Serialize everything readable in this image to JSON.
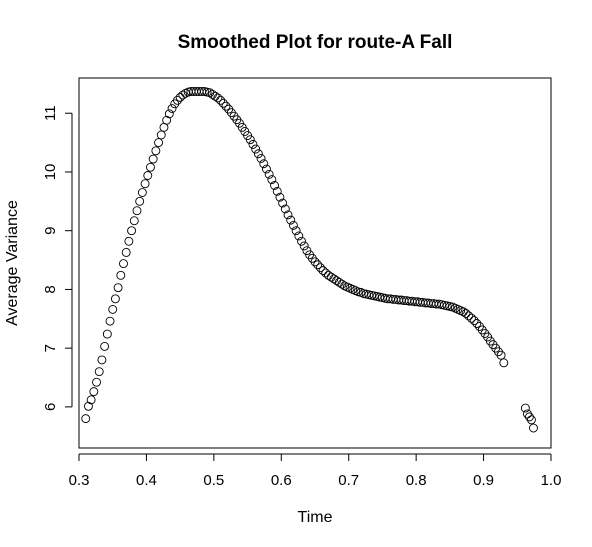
{
  "chart_data": {
    "type": "scatter",
    "title": "Smoothed Plot for route-A Fall",
    "xlabel": "Time",
    "ylabel": "Average Variance",
    "xlim": [
      0.3,
      1.0
    ],
    "ylim": [
      5.3,
      11.6
    ],
    "x_ticks": [
      "0.3",
      "0.4",
      "0.5",
      "0.6",
      "0.7",
      "0.8",
      "0.9",
      "1.0"
    ],
    "y_ticks": [
      "6",
      "7",
      "8",
      "9",
      "10",
      "11"
    ],
    "marker": "open-circle",
    "marker_color": "#000000",
    "grid": false,
    "legend": "none",
    "series": [
      {
        "x": [
          0.31,
          0.314,
          0.318,
          0.322,
          0.326,
          0.33,
          0.334,
          0.338,
          0.342,
          0.346,
          0.35,
          0.354,
          0.358,
          0.362,
          0.366,
          0.37,
          0.374,
          0.378,
          0.382,
          0.386,
          0.39,
          0.394,
          0.398,
          0.402,
          0.406,
          0.41,
          0.414,
          0.418,
          0.422,
          0.426,
          0.43,
          0.434,
          0.438,
          0.442,
          0.446,
          0.45,
          0.454,
          0.458,
          0.462,
          0.466,
          0.47,
          0.474,
          0.478,
          0.482,
          0.486,
          0.49,
          0.494,
          0.498,
          0.502,
          0.506,
          0.51,
          0.514,
          0.518,
          0.522,
          0.526,
          0.53,
          0.534,
          0.538,
          0.542,
          0.546,
          0.55,
          0.554,
          0.558,
          0.562,
          0.566,
          0.57,
          0.574,
          0.578,
          0.582,
          0.586,
          0.59,
          0.594,
          0.598,
          0.602,
          0.606,
          0.61,
          0.614,
          0.618,
          0.622,
          0.626,
          0.63,
          0.634,
          0.638,
          0.642,
          0.646,
          0.65,
          0.654,
          0.658,
          0.662,
          0.666,
          0.67,
          0.674,
          0.678,
          0.682,
          0.686,
          0.69,
          0.694,
          0.698,
          0.702,
          0.706,
          0.71,
          0.714,
          0.718,
          0.722,
          0.726,
          0.73,
          0.734,
          0.738,
          0.742,
          0.746,
          0.75,
          0.754,
          0.758,
          0.762,
          0.766,
          0.77,
          0.774,
          0.778,
          0.782,
          0.786,
          0.79,
          0.794,
          0.798,
          0.802,
          0.806,
          0.81,
          0.814,
          0.818,
          0.822,
          0.826,
          0.83,
          0.834,
          0.838,
          0.842,
          0.846,
          0.85,
          0.854,
          0.858,
          0.862,
          0.866,
          0.87,
          0.874,
          0.878,
          0.882,
          0.886,
          0.89,
          0.894,
          0.898,
          0.902,
          0.906,
          0.91,
          0.914,
          0.918,
          0.922,
          0.926,
          0.93,
          0.962,
          0.965,
          0.968,
          0.971,
          0.974
        ],
        "y": [
          5.8,
          6.01,
          6.12,
          6.26,
          6.42,
          6.6,
          6.8,
          7.03,
          7.24,
          7.46,
          7.66,
          7.84,
          8.03,
          8.24,
          8.44,
          8.63,
          8.82,
          9.0,
          9.17,
          9.34,
          9.5,
          9.65,
          9.8,
          9.94,
          10.08,
          10.22,
          10.36,
          10.5,
          10.63,
          10.76,
          10.88,
          10.99,
          11.08,
          11.16,
          11.22,
          11.27,
          11.31,
          11.34,
          11.36,
          11.37,
          11.37,
          11.37,
          11.37,
          11.37,
          11.37,
          11.36,
          11.35,
          11.32,
          11.29,
          11.26,
          11.22,
          11.17,
          11.12,
          11.07,
          11.01,
          10.95,
          10.89,
          10.83,
          10.76,
          10.69,
          10.62,
          10.55,
          10.47,
          10.39,
          10.31,
          10.23,
          10.14,
          10.05,
          9.96,
          9.87,
          9.77,
          9.67,
          9.57,
          9.47,
          9.37,
          9.27,
          9.18,
          9.09,
          9.0,
          8.91,
          8.82,
          8.74,
          8.66,
          8.59,
          8.53,
          8.47,
          8.42,
          8.37,
          8.32,
          8.28,
          8.24,
          8.21,
          8.18,
          8.15,
          8.12,
          8.09,
          8.06,
          8.04,
          8.02,
          8.0,
          7.98,
          7.96,
          7.95,
          7.93,
          7.92,
          7.91,
          7.9,
          7.89,
          7.88,
          7.87,
          7.86,
          7.85,
          7.84,
          7.84,
          7.83,
          7.83,
          7.82,
          7.82,
          7.81,
          7.81,
          7.8,
          7.8,
          7.79,
          7.79,
          7.78,
          7.78,
          7.77,
          7.77,
          7.76,
          7.76,
          7.75,
          7.75,
          7.74,
          7.73,
          7.72,
          7.71,
          7.7,
          7.68,
          7.66,
          7.64,
          7.62,
          7.59,
          7.55,
          7.51,
          7.47,
          7.42,
          7.37,
          7.31,
          7.25,
          7.19,
          7.12,
          7.06,
          7.0,
          6.94,
          6.88,
          6.75,
          5.98,
          5.88,
          5.83,
          5.78,
          5.64
        ]
      }
    ]
  }
}
